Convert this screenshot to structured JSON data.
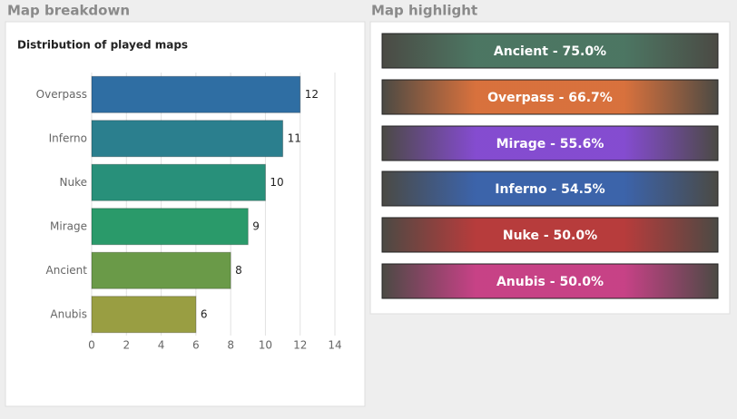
{
  "left_panel_title": "Map breakdown",
  "right_panel_title": "Map highlight",
  "chart_data": {
    "type": "hbar",
    "title": "Distribution of played maps",
    "categories": [
      "Overpass",
      "Inferno",
      "Nuke",
      "Mirage",
      "Ancient",
      "Anubis"
    ],
    "values": [
      12,
      11,
      10,
      9,
      8,
      6
    ],
    "colors": [
      "#2f6ea3",
      "#2b7f8e",
      "#28907a",
      "#2a9a6a",
      "#6a9a48",
      "#999e42"
    ],
    "xlim": [
      0,
      14
    ],
    "xticks": [
      0,
      2,
      4,
      6,
      8,
      10,
      12,
      14
    ],
    "grid": true
  },
  "highlights": [
    {
      "label": "Ancient - 75.0%",
      "color": "#3d6a55"
    },
    {
      "label": "Overpass - 66.7%",
      "color": "#d5652c"
    },
    {
      "label": "Mirage - 55.6%",
      "color": "#7a3ccc"
    },
    {
      "label": "Inferno - 54.5%",
      "color": "#2b56a3"
    },
    {
      "label": "Nuke - 50.0%",
      "color": "#b12b2b"
    },
    {
      "label": "Anubis - 50.0%",
      "color": "#c2317c"
    }
  ]
}
